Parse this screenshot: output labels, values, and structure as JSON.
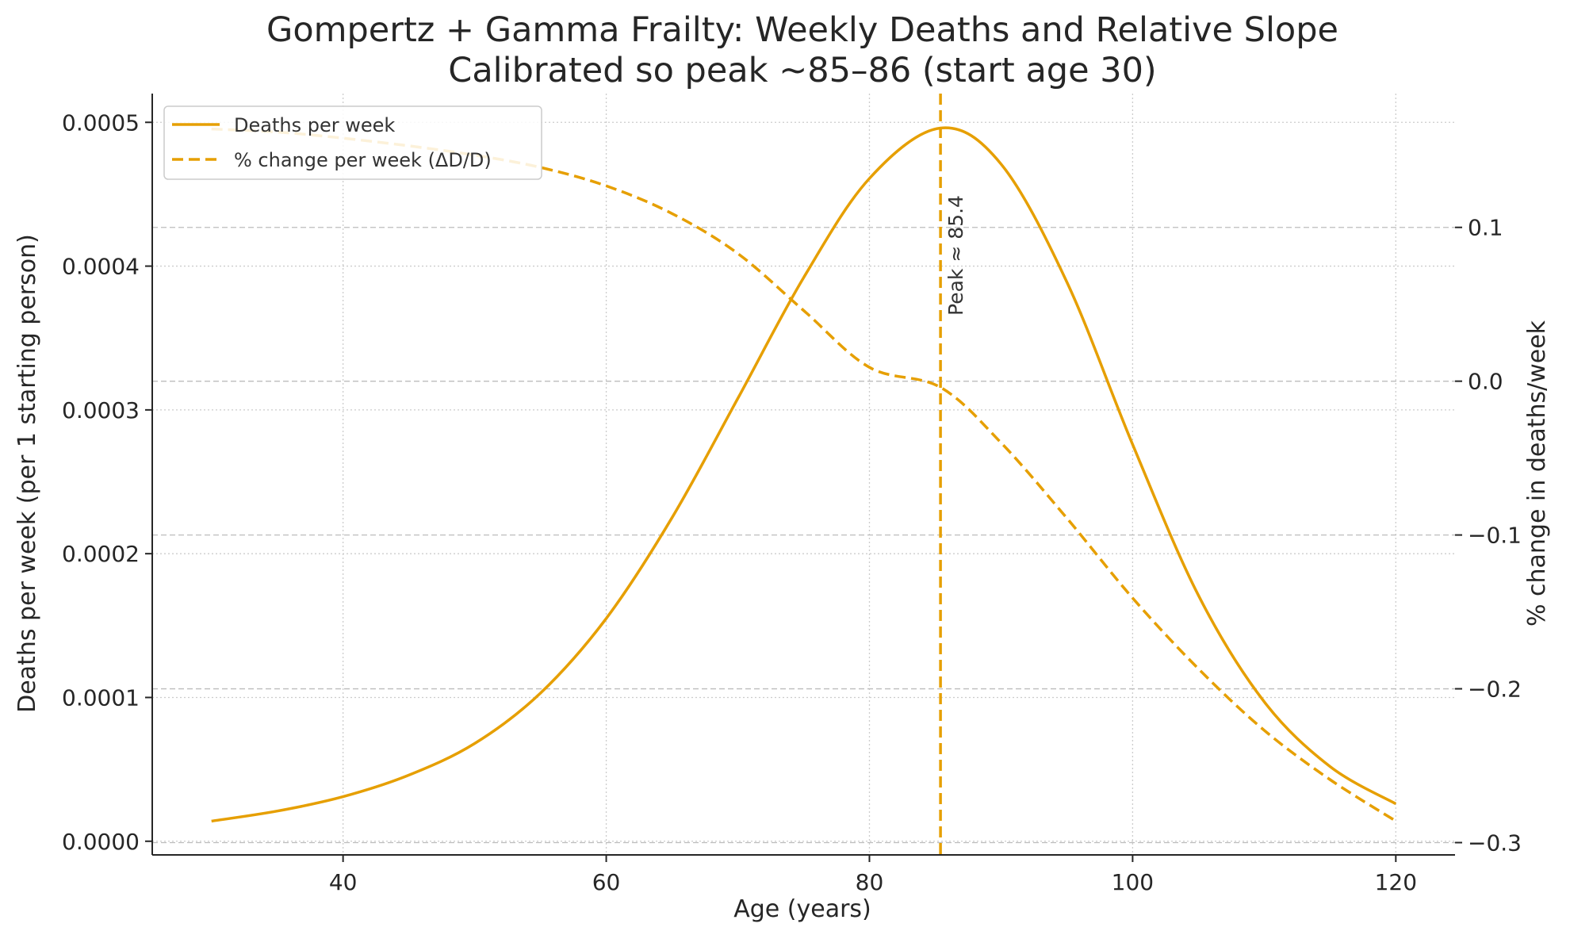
{
  "chart_data": {
    "type": "line",
    "title": "Gompertz + Gamma Frailty: Weekly Deaths and Relative Slope",
    "subtitle": "Calibrated so peak ~85–86 (start age 30)",
    "xlabel": "Age (years)",
    "ylabel_left": "Deaths per week (per 1 starting person)",
    "ylabel_right": "% change in deaths/week",
    "xlim": [
      25.5,
      124.5
    ],
    "ylim_left": [
      -9.5e-06,
      0.00052
    ],
    "ylim_right": [
      -0.308,
      0.187
    ],
    "x_ticks": [
      40,
      60,
      80,
      100,
      120
    ],
    "y_left_ticks": [
      "0.0000",
      "0.0001",
      "0.0002",
      "0.0003",
      "0.0004",
      "0.0005"
    ],
    "y_right_ticks": [
      "0.1",
      "0.0",
      "−0.1",
      "−0.2",
      "−0.3"
    ],
    "grid": true,
    "legend_position": "top-left",
    "colors": {
      "line": "#E69F00",
      "text": "#262626",
      "grid": "#cccccc"
    },
    "series": [
      {
        "name": "Deaths per week",
        "axis": "left",
        "style": "solid",
        "x": [
          30,
          35,
          40,
          45,
          50,
          55,
          60,
          65,
          70,
          75,
          80,
          85.4,
          90,
          95,
          100,
          105,
          110,
          115,
          120
        ],
        "y": [
          1.4e-05,
          2.1e-05,
          3.1e-05,
          4.6e-05,
          6.8e-05,
          0.000103,
          0.000155,
          0.000225,
          0.000308,
          0.000392,
          0.000461,
          0.000496,
          0.000471,
          0.000389,
          0.000276,
          0.000171,
          9.7e-05,
          5.2e-05,
          2.6e-05
        ]
      },
      {
        "name": "% change per week (ΔD/D)",
        "axis": "right",
        "style": "dashed",
        "x": [
          30,
          35,
          40,
          45,
          50,
          55,
          60,
          65,
          70,
          75,
          80,
          85.4,
          90,
          95,
          100,
          105,
          110,
          115,
          120
        ],
        "y": [
          0.164,
          0.162,
          0.158,
          0.153,
          0.147,
          0.139,
          0.127,
          0.109,
          0.083,
          0.046,
          0.009,
          -0.004,
          -0.04,
          -0.089,
          -0.141,
          -0.187,
          -0.227,
          -0.259,
          -0.286
        ]
      }
    ],
    "peak_line": {
      "x": 85.4,
      "label": "Peak ≈ 85.4"
    }
  }
}
